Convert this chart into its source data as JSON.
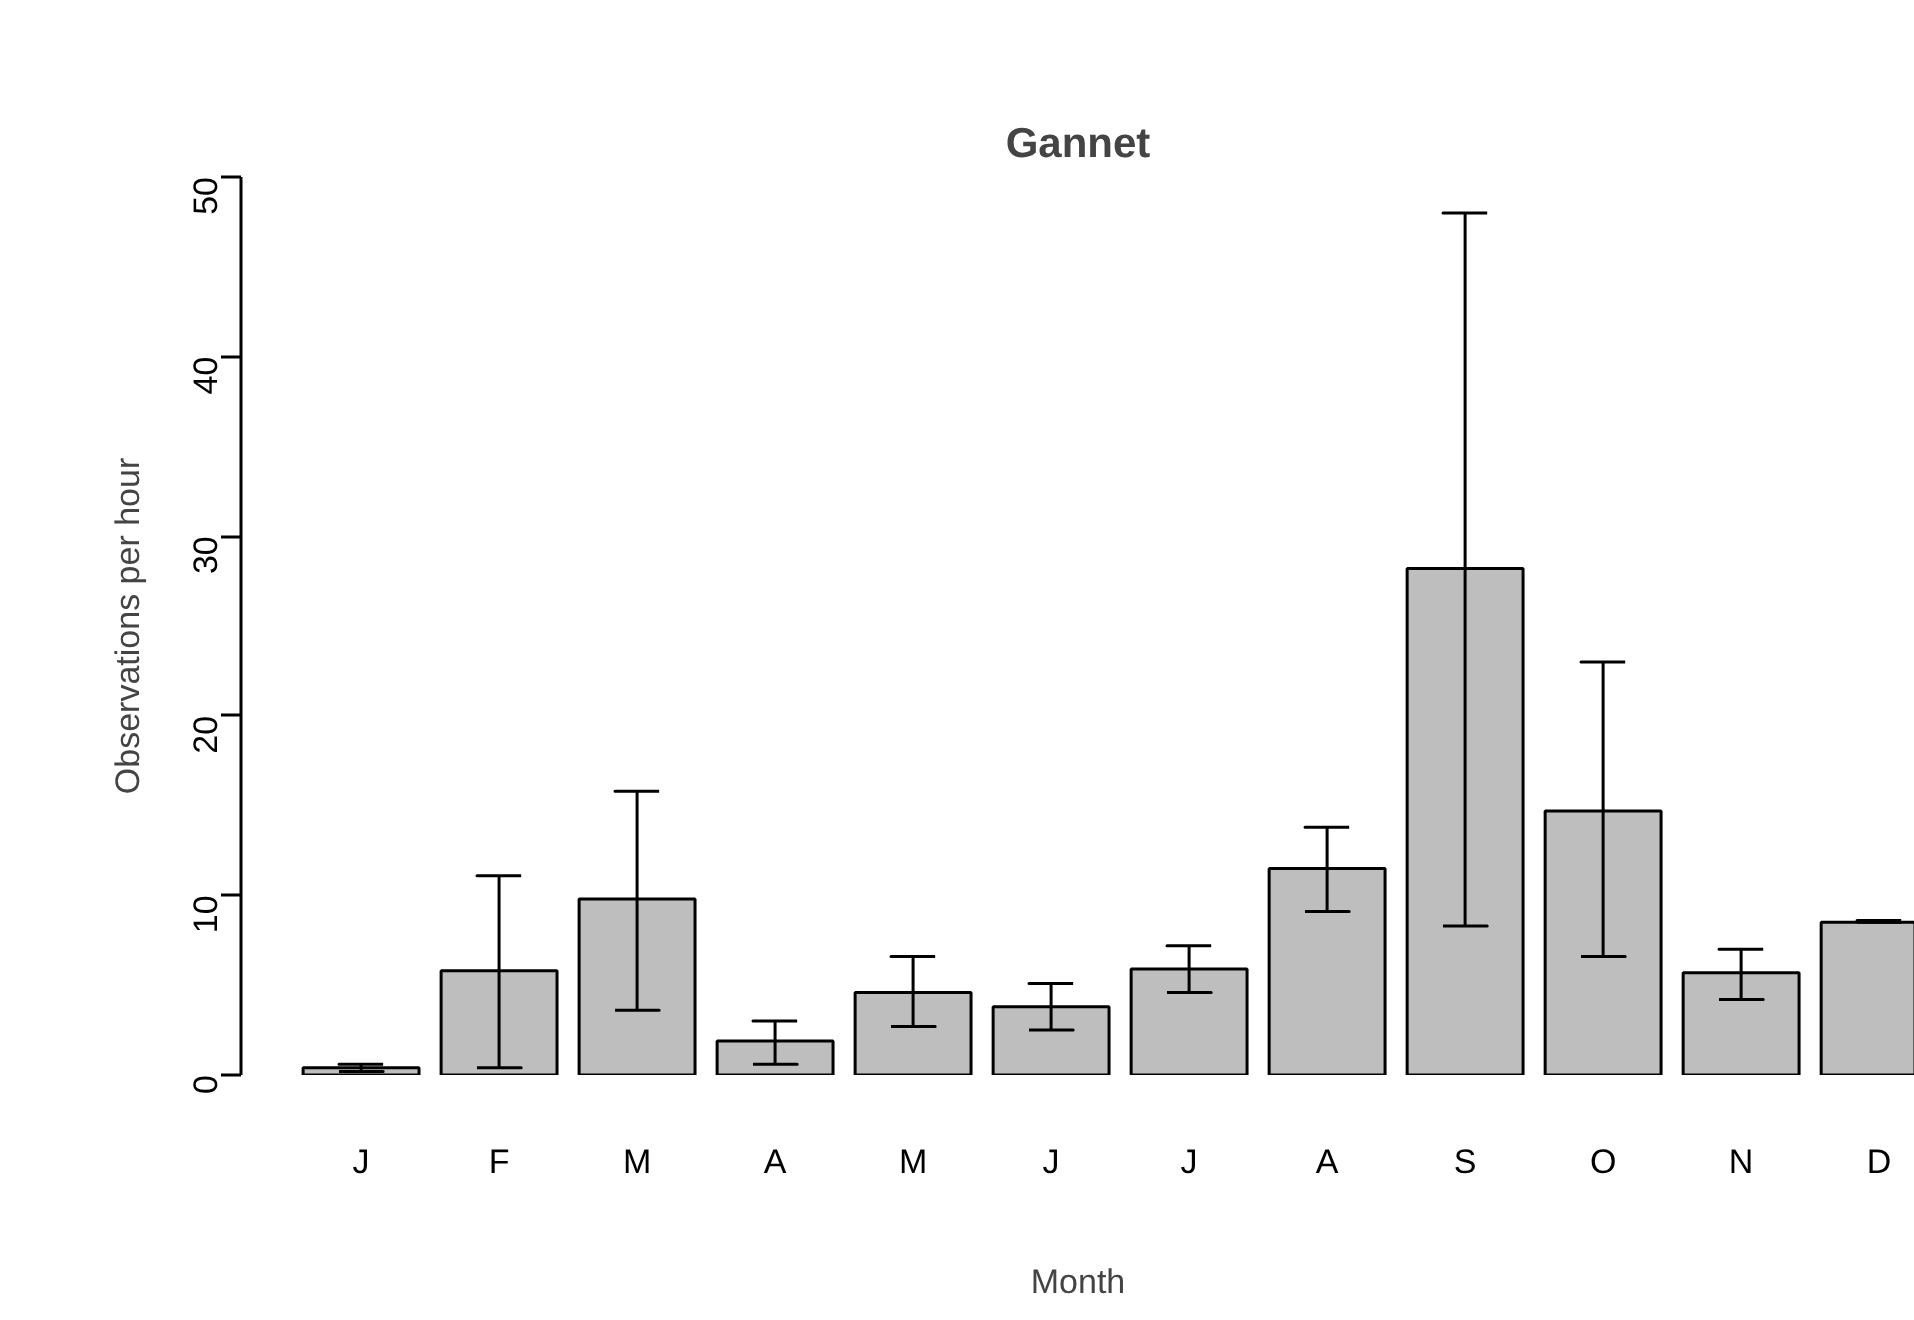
{
  "chart_data": {
    "type": "bar",
    "title": "Gannet",
    "xlabel": "Month",
    "ylabel": "Observations per hour",
    "categories": [
      "J",
      "F",
      "M",
      "A",
      "M",
      "J",
      "J",
      "A",
      "S",
      "O",
      "N",
      "D"
    ],
    "series": [
      {
        "color": "#bebebe",
        "values": [
          0.4,
          5.8,
          9.8,
          1.9,
          4.6,
          3.8,
          5.9,
          11.5,
          28.2,
          14.7,
          5.7,
          8.5
        ],
        "errors": [
          [
            0.2,
            0.6
          ],
          [
            0.4,
            11.1
          ],
          [
            3.6,
            15.8
          ],
          [
            0.6,
            3.0
          ],
          [
            2.7,
            6.6
          ],
          [
            2.5,
            5.1
          ],
          [
            4.6,
            7.2
          ],
          [
            9.1,
            13.8
          ],
          [
            8.3,
            48.0
          ],
          [
            6.6,
            23.0
          ],
          [
            4.2,
            7.0
          ],
          [
            8.5,
            8.6
          ]
        ]
      }
    ],
    "ylim": [
      0,
      50
    ],
    "yticks": [
      0,
      10,
      20,
      30,
      40,
      50
    ]
  }
}
